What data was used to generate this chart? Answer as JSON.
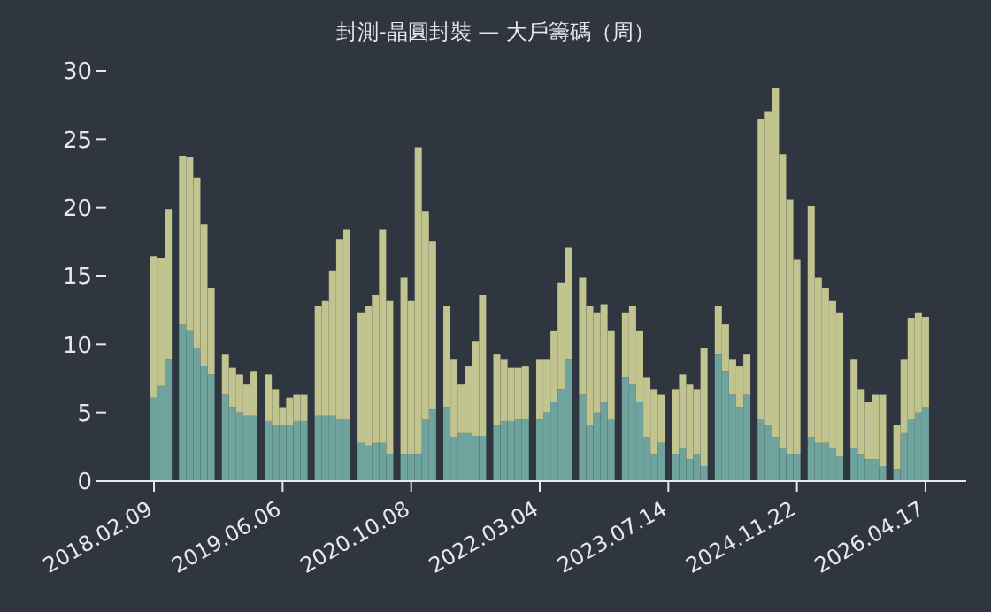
{
  "chart_data": {
    "type": "bar",
    "title": "封測-晶圓封裝 — 大戶籌碼（周）",
    "stacked": true,
    "categories": [
      "2018.02.09",
      null,
      null,
      null,
      null,
      null,
      null,
      null,
      null,
      null,
      null,
      null,
      null,
      null,
      null,
      null,
      null,
      null,
      "2019.06.06",
      null,
      null,
      null,
      null,
      null,
      null,
      null,
      null,
      null,
      null,
      null,
      null,
      null,
      null,
      null,
      null,
      null,
      "2020.10.08",
      null,
      null,
      null,
      null,
      null,
      null,
      null,
      null,
      null,
      null,
      null,
      null,
      null,
      null,
      null,
      null,
      null,
      "2022.03.04",
      null,
      null,
      null,
      null,
      null,
      null,
      null,
      null,
      null,
      null,
      null,
      null,
      null,
      null,
      null,
      null,
      null,
      "2023.07.14",
      null,
      null,
      null,
      null,
      null,
      null,
      null,
      null,
      null,
      null,
      null,
      null,
      null,
      null,
      null,
      null,
      null,
      "2024.11.22",
      null,
      null,
      null,
      null,
      null,
      null,
      null,
      null,
      null,
      null,
      null,
      null,
      null,
      null,
      null,
      null,
      null,
      "2026.04.17"
    ],
    "series": [
      {
        "color": "#6fa39e",
        "values": [
          6.1,
          7.0,
          8.9,
          null,
          11.5,
          11.0,
          9.7,
          8.4,
          7.8,
          null,
          6.3,
          5.4,
          5.0,
          4.8,
          4.8,
          null,
          4.4,
          4.1,
          4.1,
          4.1,
          4.4,
          4.4,
          null,
          4.8,
          4.8,
          4.8,
          4.5,
          4.5,
          null,
          2.8,
          2.6,
          2.8,
          2.8,
          2.0,
          null,
          2.0,
          2.0,
          2.0,
          4.5,
          5.2,
          null,
          5.4,
          3.2,
          3.5,
          3.5,
          3.3,
          3.3,
          null,
          4.1,
          4.4,
          4.4,
          4.5,
          4.5,
          null,
          4.5,
          5.0,
          5.8,
          6.7,
          8.9,
          null,
          6.3,
          4.1,
          5.0,
          5.8,
          4.5,
          null,
          7.6,
          7.1,
          5.8,
          3.2,
          2.0,
          2.8,
          null,
          2.0,
          2.4,
          1.6,
          2.0,
          1.1,
          null,
          9.3,
          8.0,
          6.3,
          5.4,
          6.3,
          null,
          4.5,
          4.1,
          3.2,
          2.4,
          2.0,
          2.0,
          null,
          3.2,
          2.8,
          2.8,
          2.4,
          1.8,
          null,
          2.4,
          2.0,
          1.6,
          1.6,
          1.1,
          null,
          0.9,
          3.5,
          4.5,
          5.0,
          5.4
        ]
      },
      {
        "color": "#c2c490",
        "values": [
          10.3,
          9.3,
          11.0,
          null,
          12.3,
          12.7,
          12.5,
          10.4,
          6.3,
          null,
          3.0,
          2.9,
          2.8,
          2.3,
          3.2,
          null,
          3.4,
          2.6,
          1.3,
          2.0,
          1.9,
          1.9,
          null,
          8.0,
          8.4,
          10.6,
          13.2,
          13.9,
          null,
          9.5,
          10.2,
          10.8,
          15.6,
          11.2,
          null,
          12.9,
          11.2,
          22.4,
          15.2,
          12.3,
          null,
          7.4,
          5.7,
          3.6,
          4.9,
          6.9,
          10.3,
          null,
          5.2,
          4.5,
          3.9,
          3.8,
          3.9,
          null,
          4.4,
          3.9,
          5.2,
          7.8,
          8.2,
          null,
          8.6,
          8.7,
          7.3,
          7.1,
          6.5,
          null,
          4.7,
          5.7,
          5.2,
          4.4,
          4.7,
          3.5,
          null,
          4.7,
          5.4,
          5.5,
          4.7,
          8.6,
          null,
          3.5,
          3.5,
          2.6,
          3.0,
          3.0,
          null,
          22.0,
          22.9,
          25.5,
          21.5,
          18.6,
          14.2,
          null,
          16.9,
          12.1,
          11.3,
          10.8,
          10.5,
          null,
          6.5,
          4.7,
          4.2,
          4.7,
          5.2,
          null,
          3.2,
          5.4,
          7.4,
          7.3,
          6.6
        ]
      }
    ],
    "ylim": [
      0,
      30
    ],
    "yticks": [
      0,
      5,
      10,
      15,
      20,
      25,
      30
    ]
  }
}
